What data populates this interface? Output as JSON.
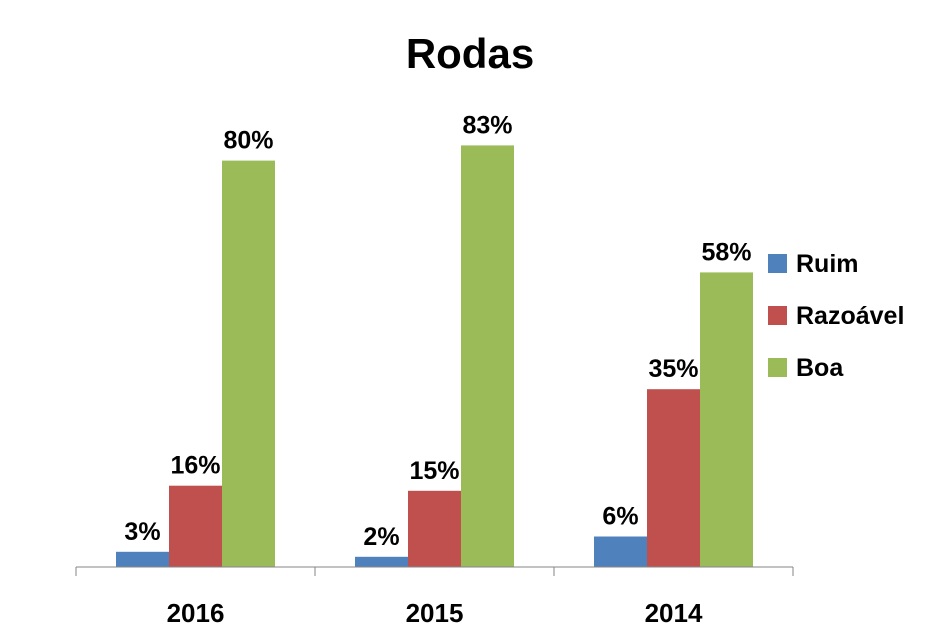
{
  "chart_data": {
    "type": "bar",
    "title": "Rodas",
    "xlabel": "",
    "ylabel": "",
    "categories": [
      "2016",
      "2015",
      "2014"
    ],
    "series": [
      {
        "name": "Ruim",
        "values": [
          3,
          2,
          6
        ],
        "labels": [
          "3%",
          "2%",
          "6%"
        ],
        "color": "#4F81BD"
      },
      {
        "name": "Razoável",
        "values": [
          16,
          15,
          35
        ],
        "labels": [
          "16%",
          "15%",
          "35%"
        ],
        "color": "#C0504D"
      },
      {
        "name": "Boa",
        "values": [
          80,
          83,
          58
        ],
        "labels": [
          "80%",
          "83%",
          "58%"
        ],
        "color": "#9BBB59"
      }
    ],
    "value_unit": "%",
    "ylim": [
      0,
      100
    ],
    "grid": false,
    "y_axis_visible": false,
    "legend_position": "right"
  }
}
